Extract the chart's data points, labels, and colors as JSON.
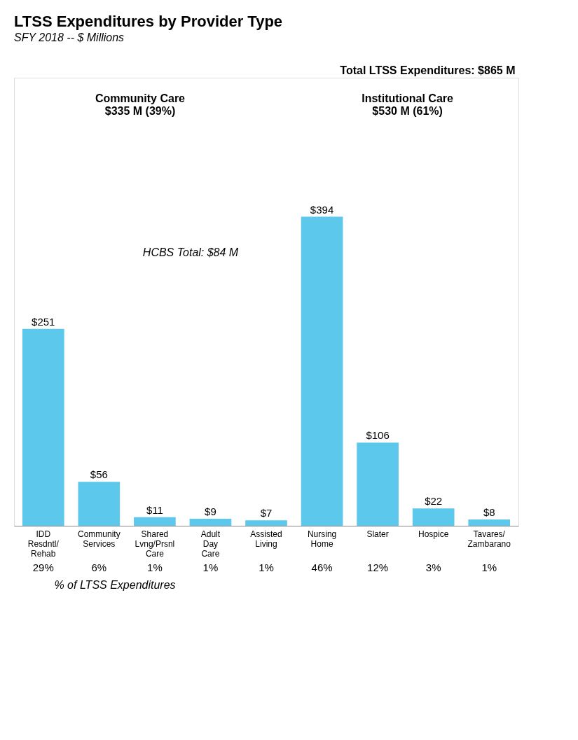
{
  "chart_data": {
    "type": "bar",
    "title": "LTSS Expenditures by Provider Type",
    "subtitle": "SFY 2018 -- $ Millions",
    "categories": [
      "IDD Resdntl/ Rehab",
      "Community Services",
      "Shared Lvng/Prsnl Care",
      "Adult Day Care",
      "Assisted Living",
      "Nursing Home",
      "Slater",
      "Hospice",
      "Tavares/ Zambarano"
    ],
    "values": [
      251,
      56,
      11,
      9,
      7,
      394,
      106,
      22,
      8
    ],
    "value_labels": [
      "$251",
      "$56",
      "$11",
      "$9",
      "$7",
      "$394",
      "$106",
      "$22",
      "$8"
    ],
    "color": "#5bc8ec",
    "annotations": [
      "Community Care\n$335 M (39%)",
      "Institutional Care\n$530 M (61%)",
      "HCBS Total: $84 M",
      "Total LTSS Expenditures:  $865 M",
      "% of LTSS Expenditures",
      "29%",
      "6%",
      "1%",
      "1%",
      "1%",
      "46%",
      "12%",
      "3%",
      "1%"
    ]
  }
}
